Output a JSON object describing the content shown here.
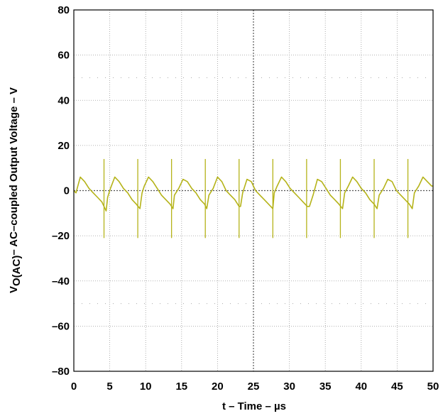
{
  "chart_data": {
    "type": "line",
    "title": "",
    "xlabel": "t – Time – µs",
    "ylabel": {
      "main": "V",
      "subscript": "O(AC)",
      "rest": "– AC–coupled Output Voltage – V"
    },
    "xlim": [
      0,
      50
    ],
    "ylim": [
      -80,
      80
    ],
    "x_ticks": [
      "0",
      "5",
      "10",
      "15",
      "20",
      "25",
      "30",
      "35",
      "40",
      "45",
      "50"
    ],
    "y_ticks": [
      "80",
      "60",
      "40",
      "20",
      "0",
      "–20",
      "–40",
      "–60",
      "–80"
    ],
    "grid": true,
    "colors": {
      "trace": "#b5b319",
      "grid": "#9a9a9a",
      "axis": "#000000"
    },
    "series": [
      {
        "x": [
          0.0,
          0.3,
          0.9,
          1.5,
          2.1,
          2.7,
          3.3,
          3.9,
          4.2,
          4.5,
          4.7,
          5.1,
          5.7,
          6.3,
          6.9,
          7.5,
          8.1,
          8.7,
          9.2,
          9.5,
          9.8,
          10.4,
          11.0,
          11.6,
          12.2,
          12.8,
          13.4,
          13.8,
          14.0,
          14.6,
          15.2,
          15.8,
          16.4,
          17.0,
          17.6,
          18.2,
          18.5,
          18.8,
          19.4,
          20.0,
          20.6,
          21.2,
          21.8,
          22.4,
          23.0,
          23.2,
          23.5,
          24.1,
          24.7,
          25.3,
          25.9,
          26.5,
          27.1,
          27.7,
          27.9,
          28.3,
          28.9,
          29.5,
          30.1,
          30.7,
          31.3,
          31.9,
          32.5,
          32.8,
          33.3,
          33.9,
          34.5,
          35.1,
          35.7,
          36.3,
          36.9,
          37.4,
          37.7,
          38.2,
          38.8,
          39.4,
          40.0,
          40.6,
          41.2,
          41.8,
          42.2,
          42.5,
          43.1,
          43.7,
          44.3,
          44.9,
          45.5,
          46.1,
          46.7,
          47.1,
          47.4,
          48.0,
          48.6,
          49.2,
          49.8,
          50.0
        ],
        "y": [
          0,
          -1,
          6,
          4,
          1,
          -1,
          -3,
          -5,
          -7,
          -9,
          -3,
          1,
          6,
          4,
          1,
          -1,
          -4,
          -6,
          -8,
          -1,
          2,
          6,
          4,
          1,
          -2,
          -4,
          -6,
          -8,
          -2,
          1,
          5,
          4,
          1,
          -1,
          -4,
          -6,
          -8,
          -2,
          1,
          6,
          4,
          0,
          -2,
          -4,
          -7,
          -7,
          -1,
          5,
          4,
          0,
          -2,
          -4,
          -6,
          -8,
          -1,
          2,
          6,
          4,
          1,
          -1,
          -3,
          -5,
          -7,
          -7,
          -2,
          5,
          4,
          1,
          -2,
          -4,
          -6,
          -8,
          -1,
          2,
          6,
          4,
          1,
          -1,
          -4,
          -6,
          -8,
          -2,
          1,
          5,
          4,
          0,
          -2,
          -4,
          -6,
          -8,
          -1,
          2,
          6,
          4,
          2,
          2
        ]
      }
    ],
    "spikes": [
      {
        "x": 4.2,
        "y_min": -21,
        "y_max": 14
      },
      {
        "x": 8.9,
        "y_min": -21,
        "y_max": 14
      },
      {
        "x": 13.6,
        "y_min": -21,
        "y_max": 14
      },
      {
        "x": 18.3,
        "y_min": -21,
        "y_max": 14
      },
      {
        "x": 23.0,
        "y_min": -21,
        "y_max": 14
      },
      {
        "x": 27.7,
        "y_min": -21,
        "y_max": 14
      },
      {
        "x": 32.4,
        "y_min": -21,
        "y_max": 14
      },
      {
        "x": 37.1,
        "y_min": -21,
        "y_max": 14
      },
      {
        "x": 41.8,
        "y_min": -21,
        "y_max": 14
      },
      {
        "x": 46.5,
        "y_min": -21,
        "y_max": 14
      }
    ]
  }
}
